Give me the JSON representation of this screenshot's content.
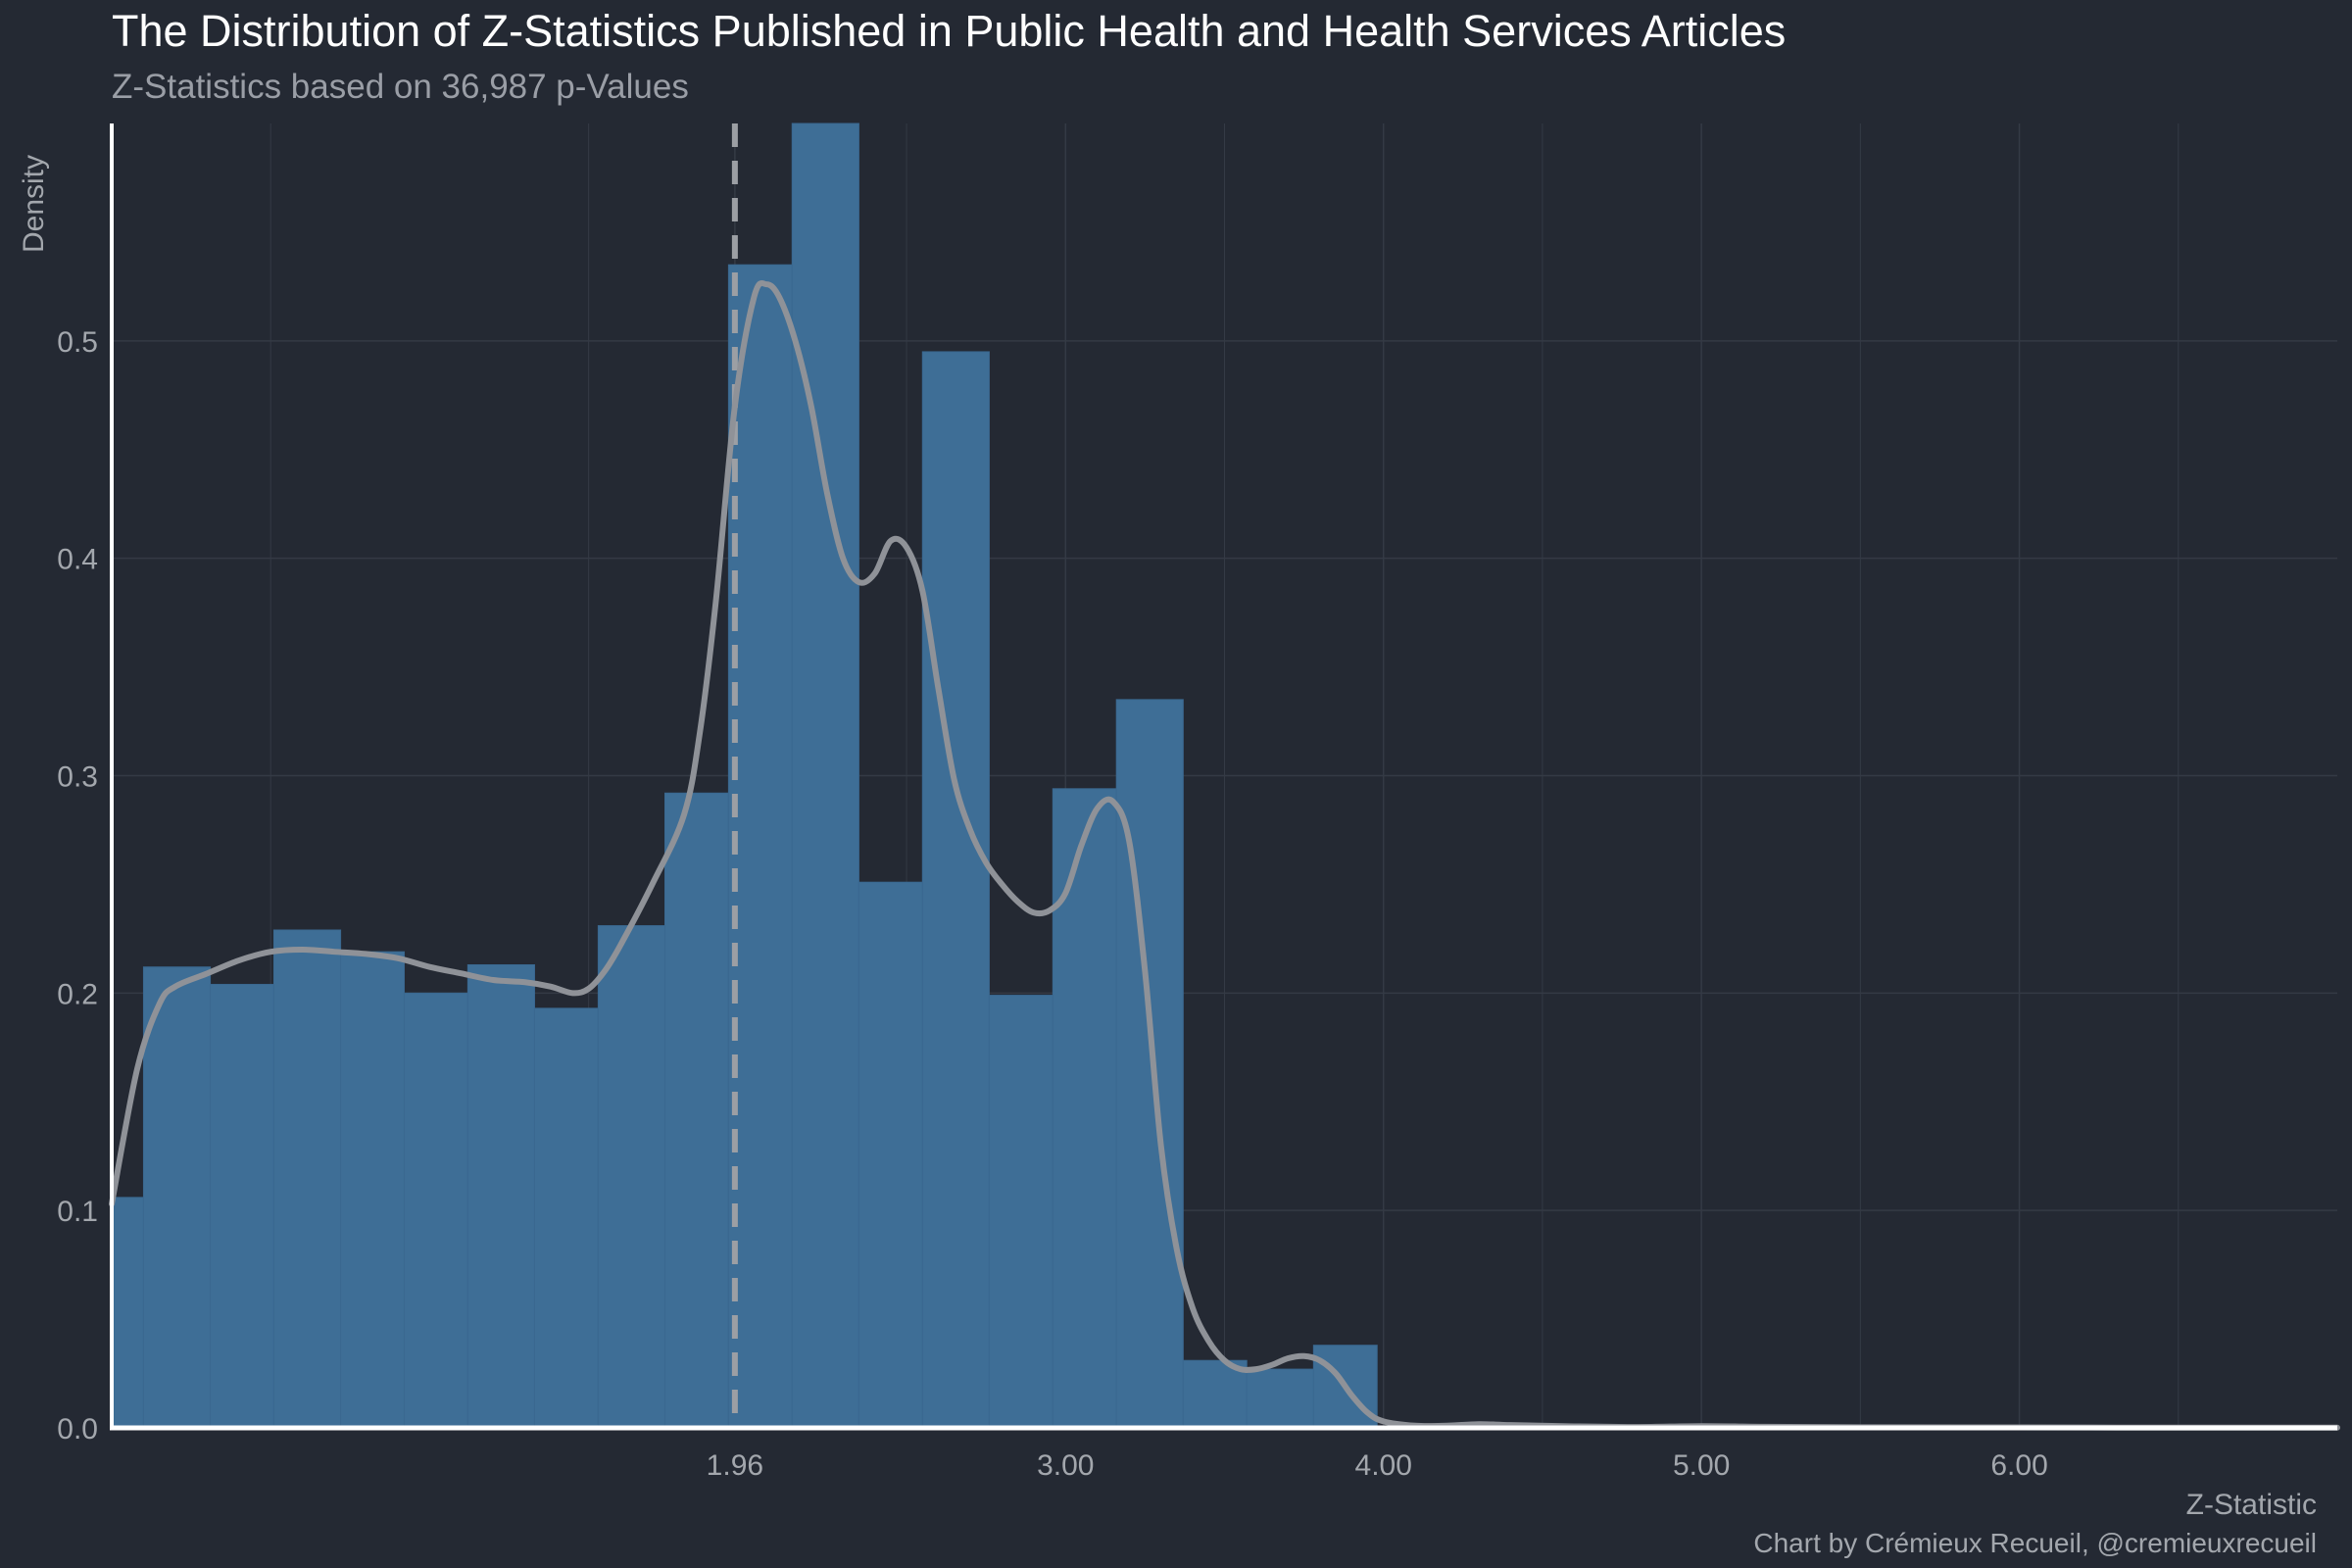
{
  "colors": {
    "background": "#242933",
    "bar_fill": "#3e6e96",
    "bar_edge": "#3a6890",
    "density_line": "#8f9298",
    "cutoff_line": "#9c9fa4",
    "grid": "#343a45",
    "axis": "#ffffff",
    "title": "#ffffff",
    "muted_text": "#a3a7ad"
  },
  "chart_data": {
    "type": "bar",
    "chart_kind": "histogram with density overlay",
    "title": "The Distribution of Z-Statistics Published in Public Health and Health Services Articles",
    "subtitle": "Z-Statistics based on 36,987 p-Values",
    "xlabel": "Z-Statistic",
    "ylabel": "Density",
    "caption": "Chart by Crémieux Recueil, @cremieuxrecueil",
    "xlim": [
      0,
      7
    ],
    "ylim": [
      0,
      0.6
    ],
    "x_ticks": [
      {
        "value": 1.96,
        "label": "1.96"
      },
      {
        "value": 3.0,
        "label": "3.00"
      },
      {
        "value": 4.0,
        "label": "4.00"
      },
      {
        "value": 5.0,
        "label": "5.00"
      },
      {
        "value": 6.0,
        "label": "6.00"
      }
    ],
    "y_ticks": [
      {
        "value": 0.0,
        "label": "0.0"
      },
      {
        "value": 0.1,
        "label": "0.1"
      },
      {
        "value": 0.2,
        "label": "0.2"
      },
      {
        "value": 0.3,
        "label": "0.3"
      },
      {
        "value": 0.4,
        "label": "0.4"
      },
      {
        "value": 0.5,
        "label": "0.5"
      }
    ],
    "grid": true,
    "legend": "none",
    "bin_width": 0.204,
    "bins": [
      {
        "x0": 0.0,
        "x1": 0.1,
        "density": 0.106
      },
      {
        "x0": 0.1,
        "x1": 0.31,
        "density": 0.212
      },
      {
        "x0": 0.31,
        "x1": 0.51,
        "density": 0.204
      },
      {
        "x0": 0.51,
        "x1": 0.72,
        "density": 0.229
      },
      {
        "x0": 0.72,
        "x1": 0.92,
        "density": 0.219
      },
      {
        "x0": 0.92,
        "x1": 1.12,
        "density": 0.2
      },
      {
        "x0": 1.12,
        "x1": 1.33,
        "density": 0.213
      },
      {
        "x0": 1.33,
        "x1": 1.53,
        "density": 0.193
      },
      {
        "x0": 1.53,
        "x1": 1.74,
        "density": 0.231
      },
      {
        "x0": 1.74,
        "x1": 1.94,
        "density": 0.292
      },
      {
        "x0": 1.94,
        "x1": 2.14,
        "density": 0.535
      },
      {
        "x0": 2.14,
        "x1": 2.35,
        "density": 0.6
      },
      {
        "x0": 2.35,
        "x1": 2.55,
        "density": 0.251
      },
      {
        "x0": 2.55,
        "x1": 2.76,
        "density": 0.495
      },
      {
        "x0": 2.76,
        "x1": 2.96,
        "density": 0.199
      },
      {
        "x0": 2.96,
        "x1": 3.16,
        "density": 0.294
      },
      {
        "x0": 3.16,
        "x1": 3.37,
        "density": 0.335
      },
      {
        "x0": 3.37,
        "x1": 3.57,
        "density": 0.031
      },
      {
        "x0": 3.57,
        "x1": 3.78,
        "density": 0.027
      },
      {
        "x0": 3.78,
        "x1": 3.98,
        "density": 0.038
      }
    ],
    "density_curve": [
      [
        0.0,
        0.103
      ],
      [
        0.08,
        0.165
      ],
      [
        0.15,
        0.195
      ],
      [
        0.2,
        0.203
      ],
      [
        0.3,
        0.209
      ],
      [
        0.4,
        0.215
      ],
      [
        0.5,
        0.219
      ],
      [
        0.6,
        0.22
      ],
      [
        0.7,
        0.219
      ],
      [
        0.8,
        0.218
      ],
      [
        0.9,
        0.216
      ],
      [
        1.0,
        0.212
      ],
      [
        1.1,
        0.209
      ],
      [
        1.2,
        0.206
      ],
      [
        1.3,
        0.205
      ],
      [
        1.38,
        0.203
      ],
      [
        1.45,
        0.2
      ],
      [
        1.5,
        0.202
      ],
      [
        1.55,
        0.21
      ],
      [
        1.6,
        0.222
      ],
      [
        1.7,
        0.25
      ],
      [
        1.8,
        0.282
      ],
      [
        1.85,
        0.32
      ],
      [
        1.9,
        0.38
      ],
      [
        1.96,
        0.47
      ],
      [
        2.02,
        0.52
      ],
      [
        2.06,
        0.526
      ],
      [
        2.1,
        0.52
      ],
      [
        2.15,
        0.5
      ],
      [
        2.2,
        0.47
      ],
      [
        2.25,
        0.43
      ],
      [
        2.3,
        0.4
      ],
      [
        2.35,
        0.389
      ],
      [
        2.4,
        0.393
      ],
      [
        2.45,
        0.408
      ],
      [
        2.5,
        0.405
      ],
      [
        2.55,
        0.385
      ],
      [
        2.6,
        0.34
      ],
      [
        2.65,
        0.298
      ],
      [
        2.7,
        0.275
      ],
      [
        2.75,
        0.26
      ],
      [
        2.8,
        0.25
      ],
      [
        2.85,
        0.242
      ],
      [
        2.9,
        0.237
      ],
      [
        2.95,
        0.238
      ],
      [
        3.0,
        0.246
      ],
      [
        3.05,
        0.268
      ],
      [
        3.1,
        0.285
      ],
      [
        3.15,
        0.288
      ],
      [
        3.2,
        0.27
      ],
      [
        3.25,
        0.21
      ],
      [
        3.3,
        0.13
      ],
      [
        3.35,
        0.082
      ],
      [
        3.4,
        0.055
      ],
      [
        3.45,
        0.04
      ],
      [
        3.5,
        0.031
      ],
      [
        3.55,
        0.027
      ],
      [
        3.6,
        0.027
      ],
      [
        3.65,
        0.029
      ],
      [
        3.7,
        0.032
      ],
      [
        3.75,
        0.033
      ],
      [
        3.8,
        0.031
      ],
      [
        3.85,
        0.025
      ],
      [
        3.9,
        0.015
      ],
      [
        3.95,
        0.007
      ],
      [
        4.0,
        0.003
      ],
      [
        4.1,
        0.001
      ],
      [
        4.2,
        0.001
      ],
      [
        4.3,
        0.0017
      ],
      [
        4.4,
        0.0013
      ],
      [
        4.6,
        0.0007
      ],
      [
        4.8,
        0.0004
      ],
      [
        5.0,
        0.0008
      ],
      [
        5.2,
        0.0005
      ],
      [
        5.5,
        0.0003
      ],
      [
        6.0,
        0.0002
      ],
      [
        6.5,
        0.0001
      ],
      [
        7.0,
        0.0001
      ]
    ],
    "reference_line": {
      "x": 1.96,
      "style": "dashed"
    }
  }
}
